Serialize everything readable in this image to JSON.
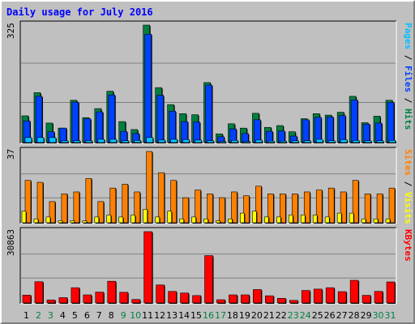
{
  "title": "Daily usage for July 2016",
  "colors": {
    "hits": "#008040",
    "files": "#0040FF",
    "pages": "#00C0FF",
    "visits": "#FF8000",
    "sites": "#FFFF00",
    "kbytes": "#FF0000",
    "grid": "#808080",
    "day_weekday": "#000000",
    "day_weekend": "#008040"
  },
  "panels": {
    "top": {
      "max_label": "325",
      "legend": [
        {
          "text": "Pages",
          "color": "#00C0FF"
        },
        {
          "text": " / ",
          "color": "#000000"
        },
        {
          "text": "Files",
          "color": "#0040FF"
        },
        {
          "text": " / ",
          "color": "#000000"
        },
        {
          "text": "Hits",
          "color": "#008040"
        }
      ]
    },
    "middle": {
      "max_label": "37",
      "legend": [
        {
          "text": "Sites",
          "color": "#FF8000"
        },
        {
          "text": " / ",
          "color": "#000000"
        },
        {
          "text": "Visits",
          "color": "#FFFF00"
        }
      ]
    },
    "bottom": {
      "max_label": "30863",
      "legend": [
        {
          "text": "KBytes",
          "color": "#FF0000"
        }
      ]
    }
  },
  "chart_data": {
    "type": "bar",
    "categories": [
      "1",
      "2",
      "3",
      "4",
      "5",
      "6",
      "7",
      "8",
      "9",
      "10",
      "11",
      "12",
      "13",
      "14",
      "15",
      "16",
      "17",
      "18",
      "19",
      "20",
      "21",
      "22",
      "23",
      "24",
      "25",
      "26",
      "27",
      "28",
      "29",
      "30",
      "31"
    ],
    "weekend_days": [
      "2",
      "3",
      "9",
      "10",
      "16",
      "17",
      "23",
      "24",
      "30",
      "31"
    ],
    "panels": [
      {
        "ylim": [
          0,
          325
        ],
        "series": [
          {
            "name": "Hits",
            "values": [
              74,
              138,
              54,
              40,
              117,
              69,
              94,
              142,
              58,
              36,
              325,
              152,
              105,
              80,
              77,
              166,
              24,
              52,
              40,
              81,
              42,
              47,
              30,
              66,
              80,
              76,
              84,
              128,
              55,
              73,
              117
            ]
          },
          {
            "name": "Files",
            "values": [
              60,
              128,
              30,
              40,
              112,
              66,
              85,
              132,
              31,
              25,
              300,
              131,
              87,
              58,
              57,
              159,
              16,
              38,
              25,
              63,
              31,
              32,
              18,
              63,
              70,
              71,
              75,
              118,
              51,
              54,
              111
            ]
          },
          {
            "name": "Pages",
            "values": [
              14,
              14,
              14,
              5,
              5,
              5,
              9,
              9,
              5,
              6,
              14,
              7,
              9,
              8,
              7,
              5,
              3,
              6,
              3,
              7,
              4,
              4,
              5,
              5,
              9,
              5,
              8,
              6,
              5,
              5,
              6
            ]
          }
        ]
      },
      {
        "ylim": [
          0,
          37
        ],
        "series": [
          {
            "name": "Sites",
            "values": [
              22,
              21,
              11,
              15,
              16,
              23,
              11,
              18,
              20,
              16,
              37,
              26,
              22,
              13,
              17,
              15,
              13,
              16,
              14,
              19,
              15,
              15,
              15,
              16,
              17,
              18,
              16,
              22,
              15,
              15,
              18
            ]
          },
          {
            "name": "Visits",
            "values": [
              6,
              2,
              3,
              1,
              1,
              1,
              3,
              4,
              3,
              4,
              7,
              3,
              6,
              2,
              3,
              2,
              1,
              2,
              5,
              6,
              3,
              3,
              4,
              4,
              4,
              3,
              5,
              5,
              2,
              2,
              2
            ]
          }
        ]
      },
      {
        "ylim": [
          0,
          30863
        ],
        "series": [
          {
            "name": "KBytes",
            "values": [
              3400,
              9200,
              1300,
              2300,
              6600,
              3500,
              4700,
              9400,
              4600,
              1500,
              30863,
              7800,
              5000,
              4300,
              3200,
              20500,
              1400,
              3500,
              3500,
              5800,
              3100,
              2000,
              1100,
              5400,
              6000,
              6600,
              4900,
              9800,
              3300,
              5000,
              9100
            ]
          }
        ]
      }
    ]
  }
}
